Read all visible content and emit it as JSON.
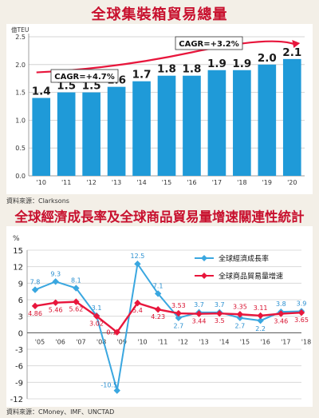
{
  "chart_data": [
    {
      "type": "bar",
      "title": "全球集裝箱貿易總量",
      "ylabel": "億TEU",
      "ylim": [
        0,
        2.5
      ],
      "yticks": [
        "0.0",
        "0.5",
        "1.0",
        "1.5",
        "2.0",
        "2.5"
      ],
      "categories": [
        "'10",
        "'11",
        "'12",
        "'13",
        "'14",
        "'15",
        "'16",
        "'17",
        "'18",
        "'19",
        "'20"
      ],
      "values": [
        1.4,
        1.5,
        1.5,
        1.6,
        1.7,
        1.8,
        1.8,
        1.9,
        1.9,
        2.0,
        2.1
      ],
      "value_labels": [
        "1.4",
        "1.5",
        "1.5",
        "1.6",
        "1.7",
        "1.8",
        "1.8",
        "1.9",
        "1.9",
        "2.0",
        "2.1"
      ],
      "annotations": [
        "CAGR=+4.7%",
        "CAGR=+3.2%"
      ],
      "grid": true,
      "source": "資料來源：Clarksons",
      "colors": {
        "bar": "#1f9ad8",
        "arrow": "#e8163c",
        "title": "#c8102e"
      }
    },
    {
      "type": "line",
      "title": "全球經濟成長率及全球商品貿易量增速關連性統計",
      "ylabel": "%",
      "ylim": [
        -12,
        15
      ],
      "yticks": [
        "-12",
        "-9",
        "-6",
        "-3",
        "0",
        "3",
        "6",
        "9",
        "12",
        "15"
      ],
      "x": [
        "'05",
        "'06",
        "'07",
        "'08",
        "'09",
        "'10",
        "'11",
        "'12",
        "'13",
        "'14",
        "'15",
        "'16",
        "'17",
        "'18"
      ],
      "series": [
        {
          "name": "全球經濟成長率",
          "values": [
            7.8,
            9.3,
            8.1,
            3.1,
            -10.5,
            12.5,
            7.1,
            2.7,
            3.7,
            3.7,
            2.7,
            2.2,
            3.8,
            3.9
          ],
          "labels": [
            "7.8",
            "9.3",
            "8.1",
            "3.1",
            "-10.5",
            "12.5",
            "7.1",
            "2.7",
            "3.7",
            "3.7",
            "2.7",
            "2.2",
            "3.8",
            "3.9"
          ],
          "color": "#3aa7e0"
        },
        {
          "name": "全球商品貿易量增速",
          "values": [
            4.86,
            5.46,
            5.62,
            3.02,
            0.1,
            5.4,
            4.23,
            3.53,
            3.44,
            3.5,
            3.35,
            3.11,
            3.46,
            3.65
          ],
          "labels": [
            "4.86",
            "5.46",
            "5.62",
            "3.02",
            "0.1",
            "5.4",
            "4.23",
            "3.53",
            "3.44",
            "3.5",
            "3.35",
            "3.11",
            "3.46",
            "3.65"
          ],
          "color": "#e8163c"
        }
      ],
      "legend": "top-right",
      "grid": true,
      "source": "資料來源：CMoney、IMF、UNCTAD"
    }
  ]
}
